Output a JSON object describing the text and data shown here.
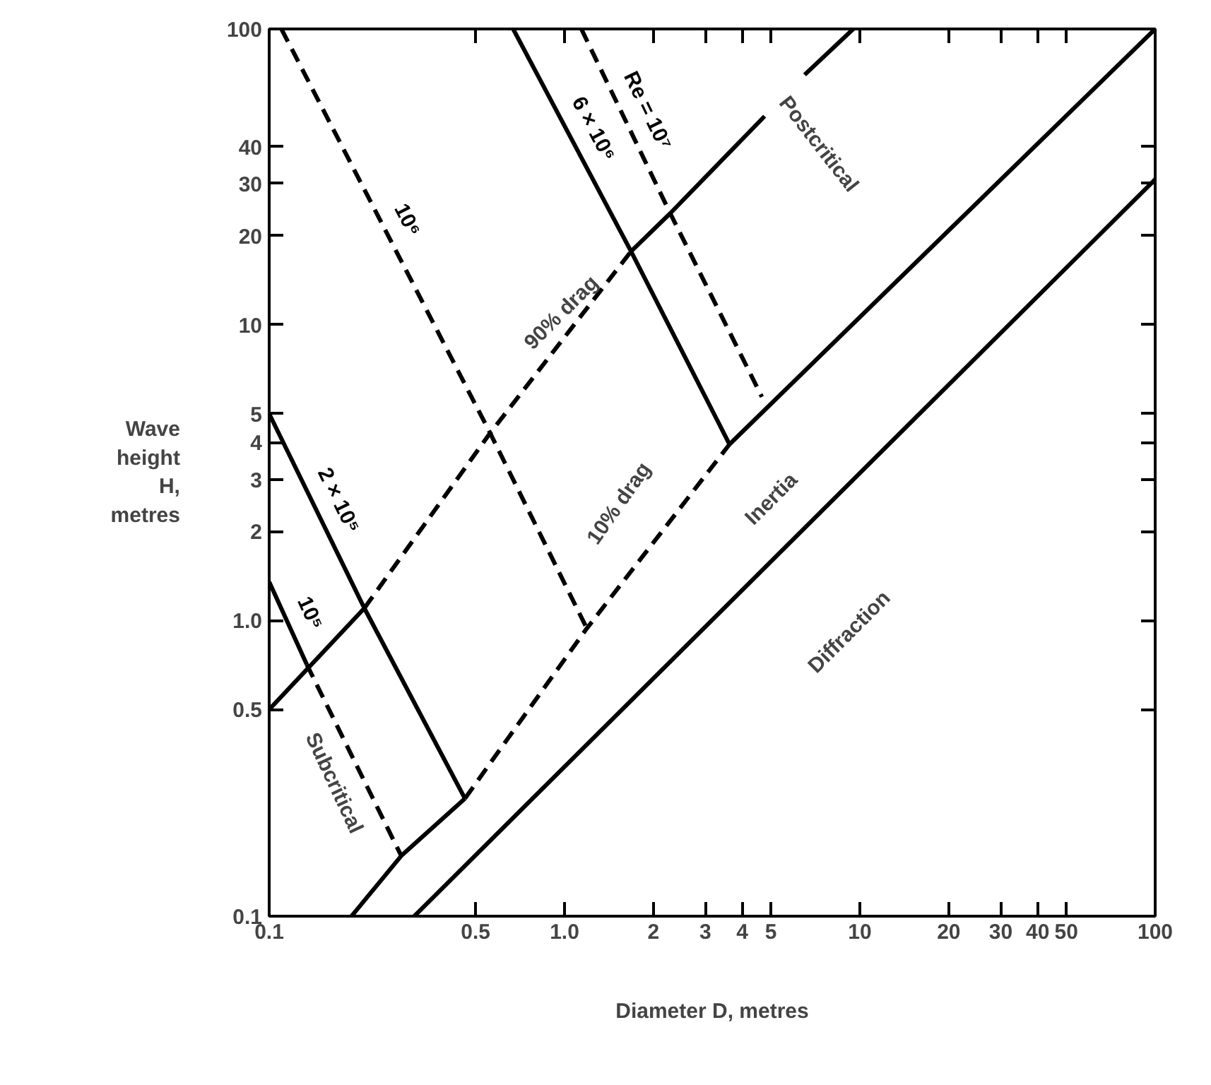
{
  "chart_data": {
    "type": "line",
    "xlabel": "Diameter D, metres",
    "ylabel": "Wave height H, metres",
    "log": "xy",
    "grid": false,
    "marker": "none",
    "xlim": [
      0.1,
      100
    ],
    "ylim": [
      0.1,
      100
    ],
    "xticks": [
      0.1,
      0.5,
      {
        "value": 1,
        "label": "1.0"
      },
      2,
      3,
      4,
      5,
      10,
      20,
      30,
      40,
      50,
      100
    ],
    "yticks": [
      0.1,
      0.5,
      {
        "value": 1,
        "label": "1.0"
      },
      2,
      3,
      4,
      5,
      10,
      20,
      30,
      40,
      100
    ],
    "series": [
      {
        "name": "Re = 10⁷",
        "color": "#000000",
        "line_style": "dashed",
        "x": [
          1.14,
          2.28,
          4.66
        ],
        "values": [
          100,
          23.8,
          5.7
        ]
      },
      {
        "name": "6 × 10⁶",
        "color": "#000000",
        "line_style": "solid",
        "x": [
          0.67,
          1.68,
          3.62
        ],
        "values": [
          100,
          17.7,
          3.94
        ]
      },
      {
        "name": "10⁶",
        "color": "#000000",
        "line_style": "dashed",
        "x": [
          0.11,
          0.56,
          1.19
        ],
        "values": [
          100,
          4.3,
          0.94
        ]
      },
      {
        "name": "2 × 10⁵",
        "color": "#000000",
        "line_style": "solid",
        "x": [
          0.1,
          0.21,
          0.46
        ],
        "values": [
          5,
          1.1,
          0.25
        ]
      },
      {
        "name": "10⁵",
        "color": "#000000",
        "line_style": "solid",
        "x": [
          0.1,
          0.134
        ],
        "values": [
          1.35,
          0.71
        ]
      },
      {
        "color": "#000000",
        "line_style": "dashed",
        "x": [
          0.134,
          0.28
        ],
        "values": [
          0.71,
          0.16
        ]
      },
      {
        "color": "#000000",
        "line_style": "solid",
        "x": [
          0.1,
          0.21
        ],
        "values": [
          0.5,
          1.1
        ]
      },
      {
        "color": "#000000",
        "line_style": "dashed",
        "x": [
          0.21,
          0.56,
          1.68
        ],
        "values": [
          1.1,
          4.3,
          17.7
        ]
      },
      {
        "color": "#000000",
        "line_style": "solid",
        "x": [
          1.68,
          2.28,
          4.76
        ],
        "values": [
          17.7,
          23.8,
          50.7
        ]
      },
      {
        "color": "#000000",
        "line_style": "solid",
        "x": [
          6.5,
          9.5
        ],
        "values": [
          70,
          100
        ]
      },
      {
        "color": "#000000",
        "line_style": "solid",
        "x": [
          0.19,
          0.28,
          0.46
        ],
        "values": [
          0.1,
          0.16,
          0.25
        ]
      },
      {
        "color": "#000000",
        "line_style": "dashed",
        "x": [
          0.46,
          1.19,
          3.62
        ],
        "values": [
          0.25,
          0.94,
          3.94
        ]
      },
      {
        "color": "#000000",
        "line_style": "solid",
        "x": [
          3.62,
          100
        ],
        "values": [
          3.94,
          100
        ]
      },
      {
        "color": "#000000",
        "line_style": "solid",
        "x": [
          0.31,
          100
        ],
        "values": [
          0.1,
          31
        ]
      }
    ],
    "annotations": [
      "Postcritical",
      "Subcritical",
      "Inertia",
      "Diffraction",
      "90% drag",
      "10% drag"
    ]
  }
}
